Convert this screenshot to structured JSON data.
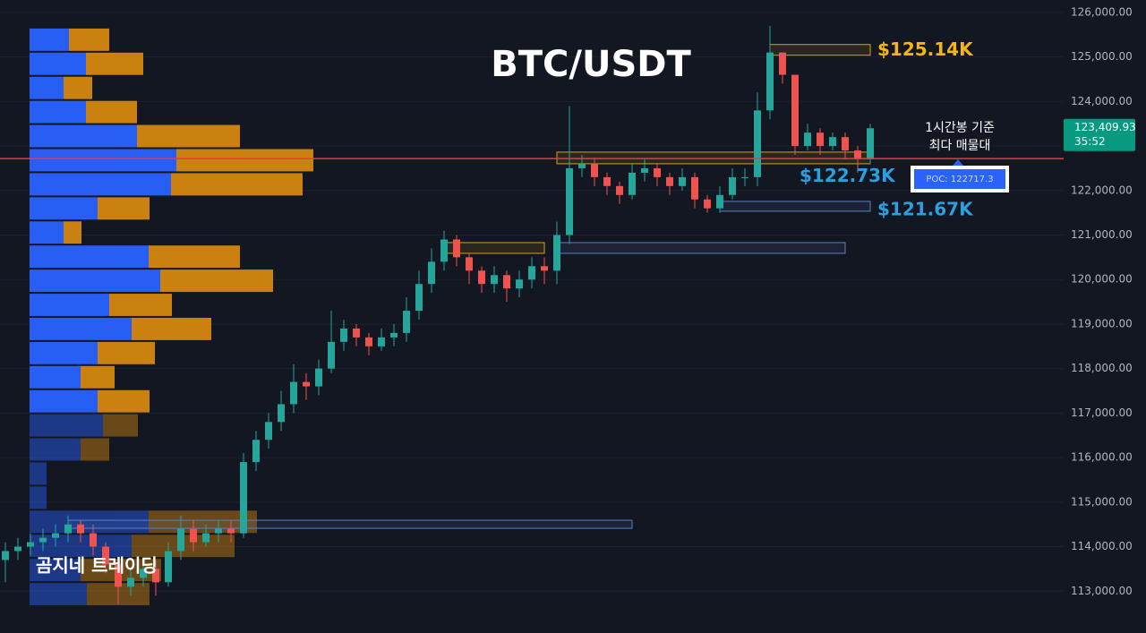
{
  "chart_data": {
    "type": "candlestick",
    "title": "BTC/USDT",
    "subtitle_lines": [
      "1시간봉 기준",
      "최다 매물대"
    ],
    "watermark": "곰지네 트레이딩",
    "ylim": [
      112060,
      126280
    ],
    "yticks": [
      {
        "value": 126000,
        "label": "126,000.00"
      },
      {
        "value": 125000,
        "label": "125,000.00"
      },
      {
        "value": 124000,
        "label": "124,000.00"
      },
      {
        "value": 123000,
        "label": "123,000.00"
      },
      {
        "value": 122000,
        "label": "122,000.00"
      },
      {
        "value": 121000,
        "label": "121,000.00"
      },
      {
        "value": 120000,
        "label": "120,000.00"
      },
      {
        "value": 119000,
        "label": "119,000.00"
      },
      {
        "value": 118000,
        "label": "118,000.00"
      },
      {
        "value": 117000,
        "label": "117,000.00"
      },
      {
        "value": 116000,
        "label": "116,000.00"
      },
      {
        "value": 115000,
        "label": "115,000.00"
      },
      {
        "value": 114000,
        "label": "114,000.00"
      },
      {
        "value": 113000,
        "label": "113,000.00"
      }
    ],
    "up_color": "#26a69a",
    "down_color": "#ef5350",
    "open": [
      113700,
      113900,
      114000,
      114100,
      114200,
      114300,
      114500,
      114300,
      114000,
      113600,
      113100,
      113300,
      113500,
      113200,
      113900,
      114400,
      114100,
      114300,
      114400,
      114300,
      115900,
      116400,
      116800,
      117200,
      117700,
      117600,
      118000,
      118600,
      118900,
      118700,
      118500,
      118700,
      118800,
      119300,
      119900,
      120400,
      120900,
      120500,
      120200,
      119900,
      120100,
      119800,
      120000,
      120300,
      120200,
      121000,
      122500,
      122600,
      122300,
      122100,
      121900,
      122400,
      122500,
      122300,
      122100,
      122300,
      121800,
      121600,
      121900,
      122300,
      122300,
      123800,
      125100,
      124600,
      123000,
      123300,
      123000,
      123200,
      122900,
      122700
    ],
    "high": [
      114100,
      114200,
      114300,
      114400,
      114500,
      114700,
      114600,
      114500,
      114100,
      113700,
      113500,
      113700,
      113700,
      114100,
      114700,
      114600,
      114500,
      114600,
      114600,
      116100,
      116600,
      117000,
      117500,
      118100,
      117900,
      118200,
      119300,
      119100,
      119000,
      118800,
      118900,
      119000,
      119600,
      120200,
      120700,
      121100,
      121000,
      120600,
      120300,
      120300,
      120200,
      120200,
      120500,
      120500,
      121300,
      123900,
      122800,
      122700,
      122400,
      122200,
      122600,
      122700,
      122600,
      122400,
      122500,
      122400,
      121900,
      122100,
      122500,
      122500,
      124200,
      125700,
      125100,
      124600,
      123500,
      123400,
      123300,
      123300,
      123000,
      123500
    ],
    "low": [
      113200,
      113700,
      113800,
      113900,
      114000,
      114100,
      114100,
      113800,
      113400,
      112700,
      112900,
      113100,
      112900,
      113100,
      113700,
      113900,
      114000,
      114100,
      114100,
      114200,
      115700,
      116200,
      116600,
      117000,
      117300,
      117400,
      117900,
      118400,
      118500,
      118300,
      118400,
      118500,
      118600,
      119100,
      119700,
      120200,
      120300,
      119900,
      119700,
      119700,
      119500,
      119600,
      119800,
      119900,
      119900,
      120800,
      122300,
      122100,
      121900,
      121700,
      121800,
      122200,
      122100,
      121900,
      122000,
      121600,
      121500,
      121500,
      121800,
      122100,
      122100,
      123600,
      124400,
      122800,
      122900,
      122800,
      122900,
      122700,
      122400,
      122600
    ],
    "close": [
      113900,
      114000,
      114100,
      114200,
      114300,
      114500,
      114300,
      114000,
      113600,
      113100,
      113300,
      113500,
      113200,
      113900,
      114400,
      114100,
      114300,
      114400,
      114300,
      115900,
      116400,
      116800,
      117200,
      117700,
      117600,
      118000,
      118600,
      118900,
      118700,
      118500,
      118700,
      118800,
      119300,
      119900,
      120400,
      120900,
      120500,
      120200,
      119900,
      120100,
      119800,
      120000,
      120300,
      120200,
      121000,
      122500,
      122600,
      122300,
      122100,
      121900,
      122400,
      122500,
      122300,
      122100,
      122300,
      121800,
      121600,
      121900,
      122300,
      122300,
      123800,
      125100,
      124600,
      123000,
      123300,
      123000,
      123200,
      122900,
      122700,
      123400
    ],
    "volume_profile": {
      "bins": [
        125659,
        125117,
        124576,
        124034,
        123493,
        122951,
        122410,
        121868,
        121327,
        120785,
        120244,
        119702,
        119161,
        118619,
        118078,
        117536,
        116995,
        116453,
        115912,
        115370,
        114829,
        114287,
        113746,
        113204,
        112663
      ],
      "buy": [
        44,
        63,
        38,
        63,
        120,
        164,
        158,
        76,
        38,
        133,
        146,
        89,
        114,
        76,
        57,
        76,
        82,
        57,
        19,
        19,
        133,
        114,
        57,
        64
      ],
      "sell": [
        45,
        64,
        32,
        57,
        115,
        153,
        147,
        58,
        20,
        102,
        126,
        70,
        89,
        64,
        38,
        58,
        39,
        32,
        0,
        0,
        121,
        115,
        90,
        70
      ],
      "buy_color": "#2962ff",
      "sell_color": "#d4870f"
    },
    "zones": [
      {
        "low": 125040,
        "high": 125280,
        "start": 61,
        "end": 69,
        "color": "#d4a017"
      },
      {
        "low": 122601,
        "high": 122863,
        "start": 44,
        "end": 69,
        "color": "#d4a017"
      },
      {
        "low": 121535,
        "high": 121756,
        "start": 57,
        "end": 69,
        "color": "#5b7fc7"
      },
      {
        "low": 120589,
        "high": 120830,
        "start": 35,
        "end": 43,
        "color": "#d4a017"
      },
      {
        "low": 120589,
        "high": 120830,
        "start": 44,
        "end": 67,
        "color": "#5b7fc7"
      },
      {
        "low": 114412,
        "high": 114593,
        "start": 5,
        "end": 50,
        "color": "#5b7fc7"
      }
    ],
    "annotations": [
      {
        "text": "$125.14K",
        "value": 125140,
        "color": "#f5b41a"
      },
      {
        "text": "$122.73K",
        "value": 122730,
        "color": "#2aa0e0"
      },
      {
        "text": "$121.67K",
        "value": 121670,
        "color": "#2aa0e0"
      }
    ],
    "poc": {
      "value": 122717.3,
      "label": "POC: 122717.3",
      "color": "#f23645"
    },
    "last_price": {
      "value": 123409.93,
      "label": "123,409.93",
      "countdown": "35:52",
      "color": "#089981"
    }
  }
}
